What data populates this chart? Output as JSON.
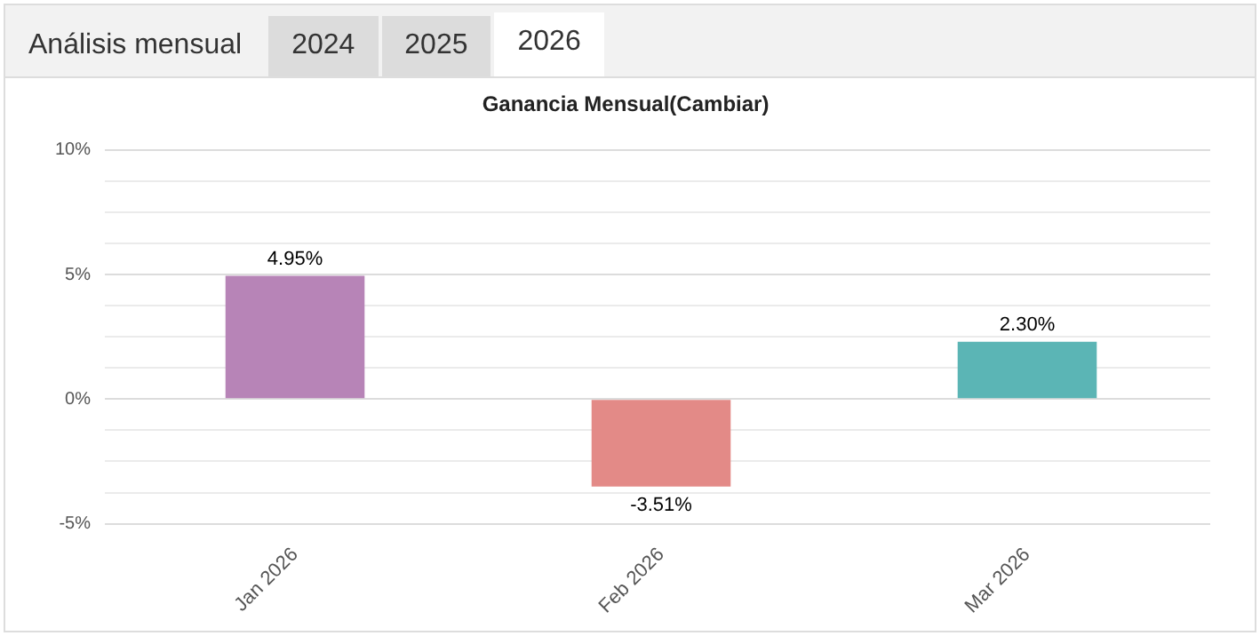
{
  "chart_data": {
    "type": "bar",
    "title": "Ganancia Mensual(Cambiar)",
    "annotations": [
      "Análisis mensual",
      "2024",
      "2025",
      "2026"
    ],
    "categories": [
      "Jan 2026",
      "Feb 2026",
      "Mar 2026"
    ],
    "values": [
      4.95,
      -3.51,
      2.3
    ],
    "colors": [
      "#b784b7",
      "#e38a87",
      "#5bb5b5"
    ],
    "value_labels": [
      "4.95%",
      "-3.51%",
      "2.30%"
    ],
    "ylim": [
      -5,
      10
    ],
    "yticks": [
      {
        "value": -5,
        "label": "-5%"
      },
      {
        "value": -3.75,
        "label": null
      },
      {
        "value": -2.5,
        "label": null
      },
      {
        "value": -1.25,
        "label": null
      },
      {
        "value": 0,
        "label": "0%"
      },
      {
        "value": 1.25,
        "label": null
      },
      {
        "value": 2.5,
        "label": null
      },
      {
        "value": 3.75,
        "label": null
      },
      {
        "value": 5,
        "label": "5%"
      },
      {
        "value": 6.25,
        "label": null
      },
      {
        "value": 7.5,
        "label": null
      },
      {
        "value": 8.75,
        "label": null
      },
      {
        "value": 10,
        "label": "10%"
      }
    ],
    "grid": "y",
    "legend": false
  }
}
